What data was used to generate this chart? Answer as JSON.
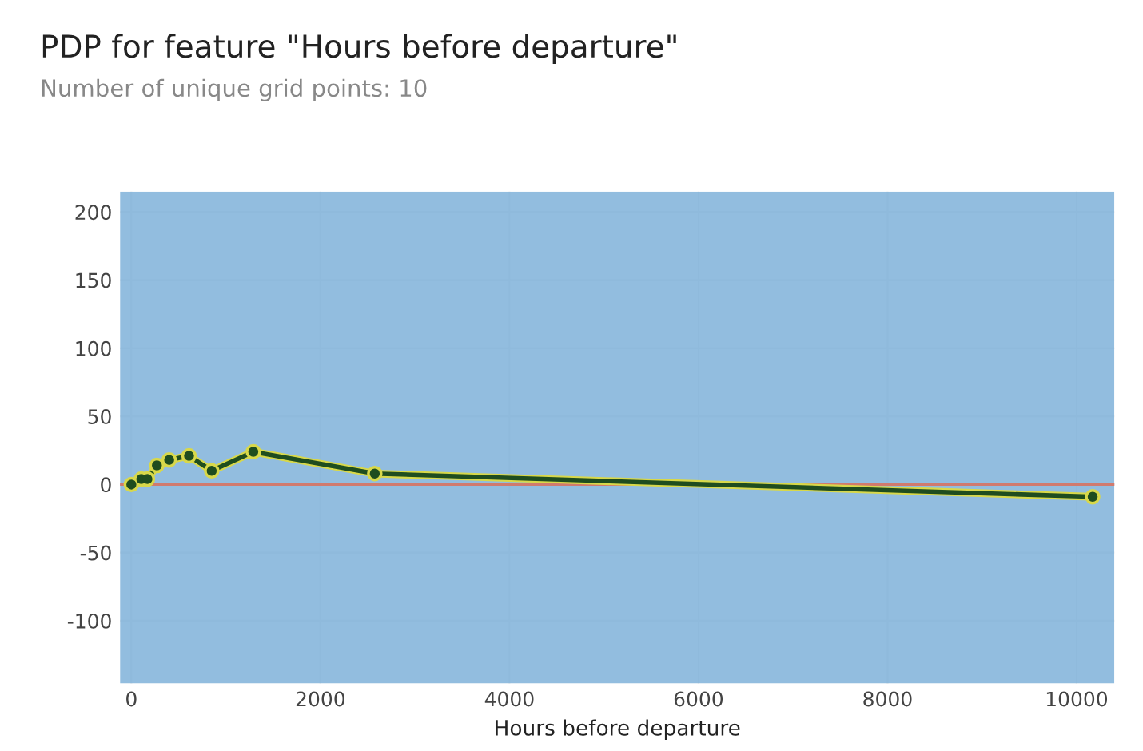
{
  "chart_data": {
    "type": "line",
    "title": "PDP for feature \"Hours before departure\"",
    "subtitle": "Number of unique grid points: 10",
    "xlabel": "Hours before departure",
    "x": [
      0,
      105,
      170,
      270,
      400,
      610,
      850,
      1290,
      2575,
      10170
    ],
    "series": [
      {
        "color": "#1f4d1f",
        "values": [
          0,
          4,
          4,
          14,
          18,
          21,
          10,
          24,
          8,
          -9
        ]
      }
    ],
    "bands": [
      {
        "axis": "y",
        "from": -146,
        "to": 215,
        "color": "#7fb2d9"
      }
    ],
    "ref_lines": [
      {
        "axis": "y",
        "value": 0,
        "color": "#d07a6e"
      }
    ],
    "xlim": [
      -120,
      10400
    ],
    "ylim": [
      -146,
      215
    ],
    "xticks": [
      0,
      2000,
      4000,
      6000,
      8000,
      10000
    ],
    "yticks": [
      -100,
      -50,
      0,
      50,
      100,
      150,
      200
    ],
    "grid": true,
    "marker": "circle",
    "line_style": "solid"
  }
}
